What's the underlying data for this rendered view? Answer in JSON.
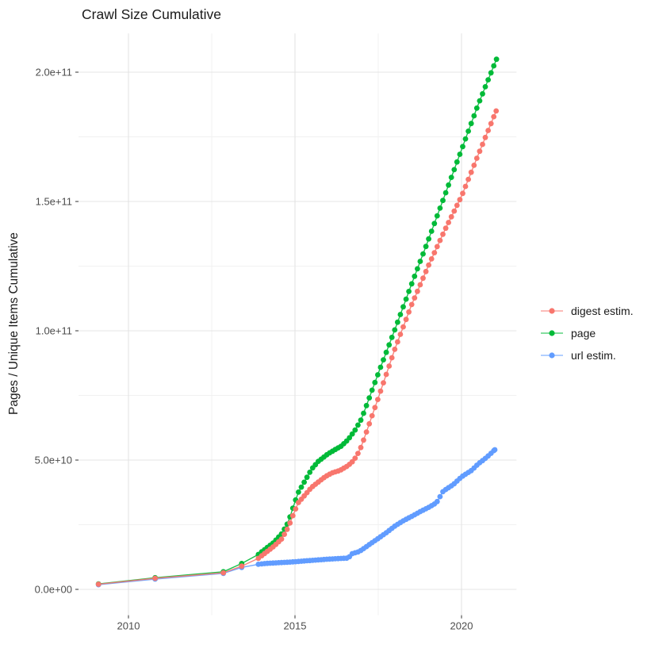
{
  "chart_data": {
    "type": "line",
    "title": "Crawl Size Cumulative",
    "xlabel": "",
    "ylabel": "Pages / Unique Items Cumulative",
    "grid": true,
    "legend_position": "right",
    "x_axis": {
      "range": [
        2008.5,
        2021.65
      ],
      "major_ticks": [
        {
          "value": 2010,
          "label": "2010"
        },
        {
          "value": 2015,
          "label": "2015"
        },
        {
          "value": 2020,
          "label": "2020"
        }
      ],
      "minor_ticks": [
        2012.5,
        2017.5
      ]
    },
    "y_axis": {
      "range": [
        -10000000000.0,
        215000000000.0
      ],
      "major_ticks": [
        {
          "value": 0,
          "label": "0.0e+00"
        },
        {
          "value": 50000000000.0,
          "label": "5.0e+10"
        },
        {
          "value": 100000000000.0,
          "label": "1.0e+11"
        },
        {
          "value": 150000000000.0,
          "label": "1.5e+11"
        },
        {
          "value": 200000000000.0,
          "label": "2.0e+11"
        }
      ],
      "minor_ticks": [
        25000000000.0,
        75000000000.0,
        125000000000.0,
        175000000000.0
      ]
    },
    "dense_from": 2014.0,
    "dot_interval_years": 0.085,
    "series": [
      {
        "name": "digest estim.",
        "color": "#F8766D",
        "points": [
          [
            2009.1,
            2000000000.0
          ],
          [
            2010.8,
            4300000000.0
          ],
          [
            2012.85,
            6400000000.0
          ],
          [
            2013.4,
            9000000000.0
          ],
          [
            2013.9,
            12000000000.0
          ],
          [
            2014.1,
            14000000000.0
          ],
          [
            2014.35,
            16500000000.0
          ],
          [
            2014.6,
            19500000000.0
          ],
          [
            2014.8,
            24000000000.0
          ],
          [
            2014.95,
            29000000000.0
          ],
          [
            2015.1,
            33500000000.0
          ],
          [
            2015.3,
            36500000000.0
          ],
          [
            2015.5,
            39500000000.0
          ],
          [
            2015.7,
            41500000000.0
          ],
          [
            2015.9,
            43500000000.0
          ],
          [
            2016.1,
            45000000000.0
          ],
          [
            2016.35,
            46000000000.0
          ],
          [
            2016.55,
            47500000000.0
          ],
          [
            2016.7,
            49000000000.0
          ],
          [
            2016.85,
            51500000000.0
          ],
          [
            2017.0,
            55500000000.0
          ],
          [
            2017.5,
            74000000000.0
          ],
          [
            2018.0,
            93000000000.0
          ],
          [
            2018.5,
            110000000000.0
          ],
          [
            2019.0,
            125000000000.0
          ],
          [
            2019.5,
            139000000000.0
          ],
          [
            2020.0,
            152000000000.0
          ],
          [
            2020.5,
            168000000000.0
          ],
          [
            2021.04,
            185000000000.0
          ]
        ]
      },
      {
        "name": "page",
        "color": "#00BA38",
        "points": [
          [
            2009.1,
            2100000000.0
          ],
          [
            2010.8,
            4500000000.0
          ],
          [
            2012.85,
            6800000000.0
          ],
          [
            2013.4,
            10000000000.0
          ],
          [
            2013.9,
            13500000000.0
          ],
          [
            2014.1,
            15500000000.0
          ],
          [
            2014.35,
            18000000000.0
          ],
          [
            2014.6,
            21500000000.0
          ],
          [
            2014.8,
            26000000000.0
          ],
          [
            2014.95,
            32000000000.0
          ],
          [
            2015.1,
            37500000000.0
          ],
          [
            2015.3,
            42000000000.0
          ],
          [
            2015.5,
            46500000000.0
          ],
          [
            2015.7,
            49500000000.0
          ],
          [
            2015.85,
            51000000000.0
          ],
          [
            2016.0,
            52500000000.0
          ],
          [
            2016.2,
            54000000000.0
          ],
          [
            2016.4,
            55500000000.0
          ],
          [
            2016.6,
            58000000000.0
          ],
          [
            2016.8,
            61500000000.0
          ],
          [
            2017.0,
            66000000000.0
          ],
          [
            2017.5,
            83500000000.0
          ],
          [
            2018.0,
            100500000000.0
          ],
          [
            2018.5,
            118000000000.0
          ],
          [
            2019.0,
            135000000000.0
          ],
          [
            2019.5,
            152500000000.0
          ],
          [
            2020.0,
            170000000000.0
          ],
          [
            2020.5,
            187500000000.0
          ],
          [
            2021.05,
            205000000000.0
          ]
        ]
      },
      {
        "name": "url estim.",
        "color": "#619CFF",
        "points": [
          [
            2009.1,
            1800000000.0
          ],
          [
            2010.8,
            4000000000.0
          ],
          [
            2012.85,
            6200000000.0
          ],
          [
            2013.4,
            8500000000.0
          ],
          [
            2013.9,
            9700000000.0
          ],
          [
            2014.1,
            10000000000.0
          ],
          [
            2014.5,
            10300000000.0
          ],
          [
            2014.9,
            10600000000.0
          ],
          [
            2015.3,
            11000000000.0
          ],
          [
            2015.7,
            11400000000.0
          ],
          [
            2016.0,
            11700000000.0
          ],
          [
            2016.3,
            11900000000.0
          ],
          [
            2016.6,
            12100000000.0
          ],
          [
            2016.72,
            13800000000.0
          ],
          [
            2016.9,
            14500000000.0
          ],
          [
            2017.0,
            15200000000.0
          ],
          [
            2017.25,
            17500000000.0
          ],
          [
            2017.5,
            19700000000.0
          ],
          [
            2017.75,
            22000000000.0
          ],
          [
            2018.0,
            24500000000.0
          ],
          [
            2018.25,
            26500000000.0
          ],
          [
            2018.5,
            28200000000.0
          ],
          [
            2018.75,
            30000000000.0
          ],
          [
            2019.0,
            31600000000.0
          ],
          [
            2019.25,
            33500000000.0
          ],
          [
            2019.45,
            38000000000.0
          ],
          [
            2019.75,
            40500000000.0
          ],
          [
            2020.0,
            43500000000.0
          ],
          [
            2020.3,
            46000000000.0
          ],
          [
            2020.5,
            48500000000.0
          ],
          [
            2020.75,
            51000000000.0
          ],
          [
            2021.0,
            54000000000.0
          ]
        ]
      }
    ]
  },
  "legend": {
    "items": [
      {
        "label": "digest estim."
      },
      {
        "label": "page"
      },
      {
        "label": "url estim."
      }
    ]
  }
}
